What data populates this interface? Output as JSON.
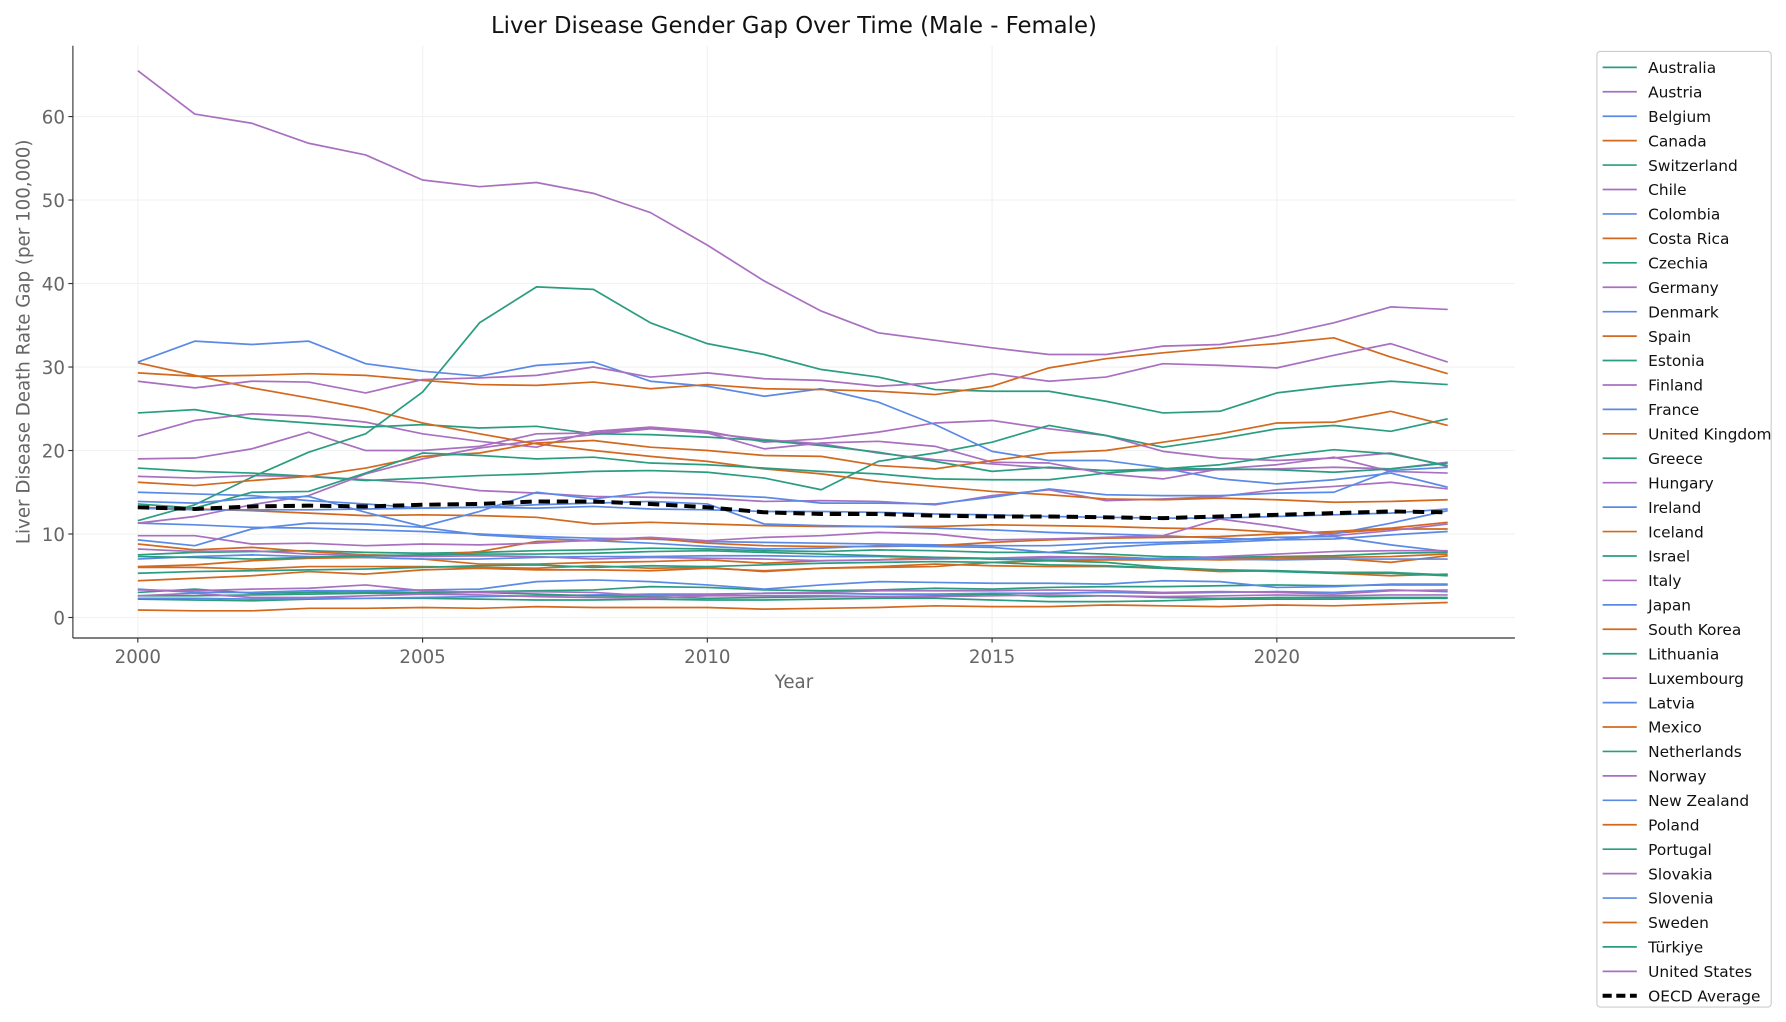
{
  "chart_data": {
    "type": "line",
    "title": "Liver Disease Gender Gap Over Time (Male - Female)",
    "xlabel": "Year",
    "ylabel": "Liver Disease Death Rate Gap (per 100,000)",
    "xlim": [
      1998.8,
      2024.2
    ],
    "ylim": [
      -2.5,
      68
    ],
    "xticks": [
      2000,
      2005,
      2010,
      2015,
      2020
    ],
    "yticks": [
      0,
      10,
      20,
      30,
      40,
      50,
      60
    ],
    "grid": true,
    "legend_position": "outside-right",
    "colors": {
      "teal": "#2a9d80",
      "purple": "#a970c0",
      "blue": "#5b8ae6",
      "orange": "#d2691e",
      "average": "#000000"
    },
    "x": [
      2000,
      2001,
      2002,
      2003,
      2004,
      2005,
      2006,
      2007,
      2008,
      2009,
      2010,
      2011,
      2012,
      2013,
      2014,
      2015,
      2016,
      2017,
      2018,
      2019,
      2020,
      2021,
      2022,
      2023
    ],
    "series": [
      {
        "name": "Australia",
        "color": "teal",
        "values": [
          2.2,
          2.1,
          2.0,
          2.2,
          2.3,
          2.3,
          2.2,
          2.1,
          2.1,
          2.2,
          2.1,
          2.1,
          2.2,
          2.3,
          2.3,
          2.1,
          1.9,
          1.9,
          2.0,
          2.2,
          2.2,
          2.2,
          2.3,
          2.3
        ]
      },
      {
        "name": "Austria",
        "color": "purple",
        "values": [
          16.9,
          16.7,
          17.0,
          16.9,
          16.5,
          16.1,
          15.2,
          14.9,
          14.5,
          14.4,
          14.3,
          13.9,
          14.0,
          13.9,
          13.5,
          14.6,
          15.3,
          14.0,
          14.2,
          14.5,
          15.3,
          15.7,
          16.2,
          15.4
        ]
      },
      {
        "name": "Belgium",
        "color": "blue",
        "values": [
          11.3,
          11.1,
          10.8,
          10.7,
          10.5,
          10.3,
          10.0,
          9.7,
          9.5,
          9.4,
          9.1,
          9.0,
          8.9,
          8.8,
          8.7,
          8.6,
          8.6,
          8.9,
          9.0,
          9.2,
          9.6,
          9.7,
          8.7,
          7.9
        ]
      },
      {
        "name": "Canada",
        "color": "orange",
        "values": [
          6.1,
          6.3,
          6.8,
          7.1,
          7.2,
          7.0,
          6.4,
          6.4,
          6.6,
          6.7,
          6.9,
          6.5,
          6.8,
          6.9,
          7.2,
          7.1,
          7.2,
          7.3,
          7.0,
          6.9,
          7.0,
          7.1,
          6.6,
          7.4
        ]
      },
      {
        "name": "Switzerland",
        "color": "teal",
        "values": [
          7.5,
          7.8,
          7.9,
          8.0,
          7.8,
          7.7,
          7.8,
          8.0,
          8.1,
          8.3,
          8.2,
          8.0,
          7.9,
          8.1,
          8.0,
          7.8,
          7.8,
          7.6,
          7.3,
          7.2,
          7.3,
          7.4,
          7.7,
          7.8
        ]
      },
      {
        "name": "Chile",
        "color": "purple",
        "values": [
          21.7,
          23.6,
          24.4,
          24.1,
          23.4,
          22.0,
          21.1,
          20.4,
          22.3,
          22.8,
          22.3,
          21.0,
          21.4,
          22.2,
          23.3,
          23.6,
          22.6,
          21.8,
          19.9,
          19.1,
          18.8,
          19.1,
          19.7,
          18.1
        ]
      },
      {
        "name": "Colombia",
        "color": "blue",
        "values": [
          2.3,
          2.3,
          2.2,
          2.3,
          2.3,
          2.4,
          2.5,
          2.6,
          2.7,
          2.8,
          2.8,
          2.9,
          2.9,
          2.8,
          2.8,
          2.9,
          2.9,
          3.0,
          2.9,
          3.0,
          3.1,
          3.0,
          3.3,
          3.1
        ]
      },
      {
        "name": "Costa Rica",
        "color": "orange",
        "values": [
          13.2,
          13.0,
          12.8,
          12.5,
          12.2,
          12.3,
          12.2,
          12.0,
          11.2,
          11.4,
          11.2,
          11.0,
          10.9,
          10.9,
          10.9,
          11.1,
          11.0,
          10.9,
          10.7,
          10.6,
          10.2,
          10.1,
          10.6,
          10.6
        ]
      },
      {
        "name": "Czechia",
        "color": "teal",
        "values": [
          17.9,
          17.5,
          17.3,
          16.9,
          16.4,
          16.7,
          17.0,
          17.2,
          17.5,
          17.6,
          17.4,
          16.7,
          15.3,
          18.7,
          19.7,
          21.0,
          23.0,
          21.8,
          20.4,
          21.4,
          22.6,
          23.0,
          22.3,
          23.8
        ]
      },
      {
        "name": "Germany",
        "color": "purple",
        "values": [
          11.3,
          12.1,
          13.5,
          14.6,
          17.2,
          19.0,
          20.3,
          21.2,
          21.9,
          22.6,
          22.1,
          21.3,
          20.8,
          19.7,
          18.9,
          18.4,
          17.9,
          17.6,
          17.6,
          17.7,
          17.8,
          18.0,
          17.8,
          18.6
        ]
      },
      {
        "name": "Denmark",
        "color": "blue",
        "values": [
          15.0,
          14.8,
          14.6,
          14.0,
          13.6,
          13.1,
          13.2,
          13.5,
          13.7,
          13.9,
          13.6,
          11.2,
          11.0,
          10.9,
          10.7,
          10.5,
          10.2,
          10.0,
          9.8,
          9.5,
          9.3,
          10.0,
          11.3,
          12.8
        ]
      },
      {
        "name": "Spain",
        "color": "orange",
        "values": [
          8.8,
          8.1,
          8.4,
          7.9,
          7.5,
          7.4,
          7.9,
          9.1,
          9.2,
          9.5,
          8.9,
          8.6,
          8.5,
          8.5,
          8.6,
          9.0,
          9.3,
          9.5,
          9.6,
          9.7,
          10.0,
          10.3,
          10.7,
          11.4
        ]
      },
      {
        "name": "Estonia",
        "color": "teal",
        "values": [
          24.5,
          24.9,
          23.8,
          23.3,
          22.8,
          23.1,
          22.7,
          22.9,
          22.0,
          21.9,
          21.6,
          21.2,
          20.6,
          19.8,
          18.7,
          17.5,
          18.0,
          17.6,
          17.8,
          18.3,
          19.3,
          20.1,
          19.6,
          18.2
        ]
      },
      {
        "name": "Finland",
        "color": "purple",
        "values": [
          19.0,
          19.1,
          20.2,
          22.2,
          20.0,
          20.0,
          20.5,
          22.0,
          22.1,
          22.7,
          22.1,
          20.2,
          20.9,
          21.1,
          20.5,
          18.6,
          18.5,
          17.2,
          16.6,
          17.8,
          18.3,
          19.2,
          17.5,
          17.3
        ]
      },
      {
        "name": "France",
        "color": "blue",
        "values": [
          13.1,
          12.9,
          12.9,
          12.9,
          13.0,
          13.1,
          13.2,
          13.1,
          13.3,
          13.0,
          12.9,
          12.7,
          12.7,
          12.6,
          12.4,
          12.3,
          12.1,
          12.0,
          11.9,
          11.9,
          12.1,
          12.3,
          12.5,
          13.0
        ]
      },
      {
        "name": "United Kingdom",
        "color": "orange",
        "values": [
          6.0,
          6.0,
          5.8,
          6.1,
          6.1,
          6.1,
          6.0,
          5.9,
          6.2,
          5.9,
          6.0,
          5.5,
          5.9,
          6.0,
          6.1,
          6.6,
          6.8,
          6.9,
          6.9,
          7.0,
          7.2,
          7.2,
          7.3,
          7.6
        ]
      },
      {
        "name": "Greece",
        "color": "teal",
        "values": [
          2.6,
          2.6,
          2.7,
          2.8,
          2.9,
          2.9,
          3.0,
          2.8,
          2.6,
          2.5,
          2.3,
          2.4,
          2.5,
          2.5,
          2.6,
          2.8,
          2.5,
          2.6,
          2.4,
          2.3,
          2.4,
          2.4,
          2.4,
          2.4
        ]
      },
      {
        "name": "Hungary",
        "color": "purple",
        "values": [
          65.5,
          60.3,
          59.2,
          56.8,
          55.4,
          52.4,
          51.6,
          52.1,
          50.8,
          48.5,
          44.6,
          40.3,
          36.7,
          34.1,
          33.2,
          32.3,
          31.5,
          31.5,
          32.5,
          32.7,
          33.8,
          35.3,
          37.2,
          36.9
        ]
      },
      {
        "name": "Ireland",
        "color": "blue",
        "values": [
          9.3,
          8.6,
          10.6,
          11.3,
          11.2,
          10.8,
          9.9,
          9.5,
          9.2,
          8.9,
          8.5,
          8.2,
          8.3,
          8.6,
          8.5,
          8.4,
          7.8,
          8.4,
          8.8,
          9.0,
          9.3,
          9.4,
          9.9,
          10.3
        ]
      },
      {
        "name": "Iceland",
        "color": "orange",
        "values": [
          4.4,
          4.7,
          5.0,
          5.5,
          5.2,
          5.7,
          5.9,
          5.7,
          5.7,
          5.6,
          5.9,
          5.6,
          5.9,
          6.1,
          6.4,
          6.2,
          6.1,
          6.1,
          5.9,
          5.5,
          5.6,
          5.3,
          5.0,
          5.2
        ]
      },
      {
        "name": "Israel",
        "color": "teal",
        "values": [
          3.0,
          3.4,
          2.9,
          3.0,
          3.1,
          3.0,
          3.1,
          3.2,
          3.3,
          3.7,
          3.6,
          3.3,
          3.2,
          3.3,
          3.5,
          3.4,
          3.6,
          3.7,
          3.7,
          3.8,
          3.9,
          3.8,
          3.9,
          3.9
        ]
      },
      {
        "name": "Italy",
        "color": "purple",
        "values": [
          8.2,
          7.9,
          8.0,
          7.6,
          7.4,
          7.3,
          7.4,
          7.3,
          7.0,
          7.2,
          7.1,
          7.0,
          6.8,
          6.9,
          7.0,
          7.1,
          7.3,
          7.2,
          7.0,
          7.3,
          7.6,
          7.9,
          8.0,
          8.0
        ]
      },
      {
        "name": "Japan",
        "color": "blue",
        "values": [
          7.0,
          7.3,
          7.5,
          7.3,
          7.2,
          7.0,
          7.0,
          7.2,
          7.3,
          7.3,
          7.4,
          7.4,
          7.3,
          7.3,
          7.2,
          7.0,
          7.0,
          7.0,
          7.1,
          7.0,
          6.9,
          7.0,
          7.0,
          7.0
        ]
      },
      {
        "name": "South Korea",
        "color": "orange",
        "values": [
          30.5,
          29.0,
          27.5,
          26.3,
          25.0,
          23.3,
          22.0,
          20.8,
          20.0,
          19.3,
          18.7,
          17.8,
          17.2,
          16.3,
          15.7,
          15.1,
          14.7,
          14.2,
          14.1,
          14.3,
          14.1,
          13.8,
          13.9,
          14.1
        ]
      },
      {
        "name": "Lithuania",
        "color": "teal",
        "values": [
          11.6,
          13.5,
          16.8,
          19.8,
          22.0,
          27.0,
          35.3,
          39.6,
          39.3,
          35.3,
          32.8,
          31.5,
          29.7,
          28.8,
          27.3,
          27.1,
          27.1,
          25.9,
          24.5,
          24.7,
          26.9,
          27.7,
          28.3,
          27.9
        ]
      },
      {
        "name": "Luxembourg",
        "color": "purple",
        "values": [
          9.8,
          9.8,
          8.8,
          8.9,
          8.6,
          8.8,
          8.7,
          8.9,
          9.3,
          9.6,
          9.2,
          9.6,
          9.8,
          10.2,
          10.0,
          9.3,
          9.4,
          9.6,
          9.8,
          11.8,
          10.9,
          9.8,
          10.4,
          11.2
        ]
      },
      {
        "name": "Latvia",
        "color": "blue",
        "values": [
          30.6,
          33.1,
          32.7,
          33.1,
          30.4,
          29.5,
          28.9,
          30.2,
          30.6,
          28.3,
          27.7,
          26.5,
          27.4,
          25.8,
          23.1,
          19.9,
          18.8,
          18.8,
          17.9,
          16.6,
          16.0,
          16.5,
          17.3,
          15.6
        ]
      },
      {
        "name": "Mexico",
        "color": "orange",
        "values": [
          29.3,
          28.9,
          29.0,
          29.2,
          29.0,
          28.4,
          27.9,
          27.8,
          28.2,
          27.4,
          27.9,
          27.4,
          27.3,
          27.1,
          26.7,
          27.7,
          29.9,
          31.0,
          31.7,
          32.3,
          32.8,
          33.5,
          31.2,
          29.2
        ]
      },
      {
        "name": "Netherlands",
        "color": "teal",
        "values": [
          5.3,
          5.5,
          5.6,
          5.7,
          5.8,
          6.0,
          6.2,
          6.3,
          6.0,
          6.2,
          6.1,
          6.3,
          6.5,
          6.6,
          6.7,
          6.6,
          6.3,
          6.2,
          5.9,
          5.7,
          5.6,
          5.4,
          5.4,
          5.1
        ]
      },
      {
        "name": "Norway",
        "color": "purple",
        "values": [
          2.6,
          2.9,
          2.4,
          2.4,
          2.6,
          2.8,
          2.7,
          2.5,
          2.4,
          2.3,
          2.6,
          2.6,
          2.6,
          2.5,
          2.5,
          2.6,
          2.7,
          2.6,
          2.5,
          2.6,
          2.7,
          2.6,
          2.7,
          2.7
        ]
      },
      {
        "name": "New Zealand",
        "color": "blue",
        "values": [
          3.4,
          3.0,
          3.0,
          3.2,
          3.2,
          3.3,
          3.4,
          4.3,
          4.5,
          4.3,
          3.9,
          3.4,
          3.9,
          4.3,
          4.2,
          4.1,
          4.1,
          4.0,
          4.4,
          4.3,
          3.6,
          3.7,
          4.0,
          4.0
        ]
      },
      {
        "name": "Poland",
        "color": "orange",
        "values": [
          16.2,
          15.8,
          16.4,
          16.9,
          17.9,
          19.3,
          19.7,
          20.9,
          21.2,
          20.4,
          20.0,
          19.4,
          19.3,
          18.2,
          17.8,
          18.8,
          19.7,
          20.0,
          21.0,
          22.0,
          23.3,
          23.4,
          24.7,
          23.0
        ]
      },
      {
        "name": "Portugal",
        "color": "teal",
        "values": [
          13.6,
          13.1,
          15.0,
          15.1,
          17.3,
          19.7,
          19.4,
          19.0,
          19.2,
          18.5,
          18.3,
          17.9,
          17.5,
          17.2,
          16.6,
          16.5,
          16.5,
          17.3,
          17.8,
          17.8,
          17.7,
          17.4,
          17.8,
          18.5
        ]
      },
      {
        "name": "Slovakia",
        "color": "purple",
        "values": [
          28.3,
          27.5,
          28.3,
          28.2,
          26.9,
          28.5,
          28.7,
          29.0,
          30.0,
          28.8,
          29.3,
          28.6,
          28.4,
          27.7,
          28.1,
          29.2,
          28.3,
          28.8,
          30.4,
          30.2,
          29.9,
          31.4,
          32.8,
          30.6
        ]
      },
      {
        "name": "Slovenia",
        "color": "blue",
        "values": [
          13.9,
          13.7,
          14.3,
          14.5,
          12.6,
          10.9,
          12.7,
          15.0,
          14.2,
          15.0,
          14.7,
          14.4,
          13.7,
          13.7,
          13.6,
          14.4,
          15.4,
          14.7,
          14.6,
          14.6,
          14.9,
          15.0,
          17.6,
          18.0
        ]
      },
      {
        "name": "Sweden",
        "color": "orange",
        "values": [
          0.9,
          0.8,
          0.8,
          1.1,
          1.1,
          1.2,
          1.1,
          1.3,
          1.2,
          1.2,
          1.2,
          1.0,
          1.1,
          1.2,
          1.4,
          1.3,
          1.3,
          1.5,
          1.4,
          1.3,
          1.5,
          1.4,
          1.6,
          1.8
        ]
      },
      {
        "name": "Türkiye",
        "color": "teal",
        "values": [
          7.3,
          7.2,
          7.0,
          7.2,
          7.4,
          7.5,
          7.6,
          7.6,
          7.7,
          7.9,
          8.0,
          7.8,
          7.6,
          7.4,
          7.2,
          7.0,
          6.8,
          6.6,
          6.0,
          5.7,
          5.5,
          5.3,
          5.3,
          5.0
        ]
      },
      {
        "name": "United States",
        "color": "purple",
        "values": [
          3.3,
          3.2,
          3.4,
          3.5,
          3.9,
          3.2,
          3.0,
          3.1,
          3.0,
          2.6,
          2.7,
          2.9,
          3.0,
          3.2,
          3.2,
          3.2,
          3.3,
          3.2,
          3.0,
          3.1,
          3.0,
          2.8,
          3.2,
          3.3
        ]
      },
      {
        "name": "OECD Average",
        "color": "average",
        "dashed": true,
        "values": [
          13.2,
          13.0,
          13.3,
          13.4,
          13.3,
          13.5,
          13.6,
          13.9,
          13.9,
          13.6,
          13.2,
          12.6,
          12.4,
          12.4,
          12.2,
          12.1,
          12.1,
          12.0,
          11.9,
          12.1,
          12.3,
          12.5,
          12.7,
          12.6
        ]
      }
    ]
  }
}
